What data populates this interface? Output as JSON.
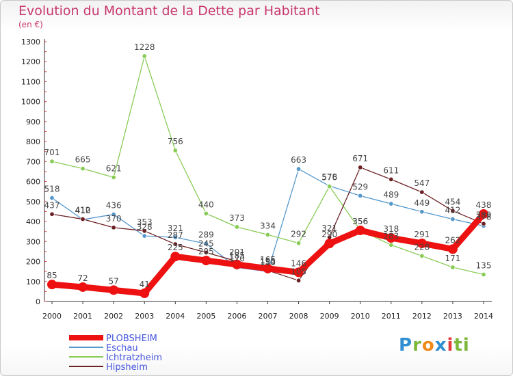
{
  "header": {
    "title": "Evolution du Montant de la Dette par Habitant",
    "subtitle": "(en €)"
  },
  "logo": {
    "letters": [
      "P",
      "r",
      "o",
      "x",
      "i",
      "ti"
    ]
  },
  "chart_data": {
    "type": "line",
    "title": "Evolution du Montant de la Dette par Habitant",
    "ylabel": "(en €)",
    "xlabel": "",
    "x": [
      "2000",
      "2001",
      "2002",
      "2003",
      "2004",
      "2005",
      "2006",
      "2007",
      "2008",
      "2009",
      "2010",
      "2011",
      "2012",
      "2013",
      "2014"
    ],
    "ylim": [
      0,
      1300
    ],
    "yticks": [
      0,
      100,
      200,
      300,
      400,
      500,
      600,
      700,
      800,
      900,
      1000,
      1100,
      1200,
      1300
    ],
    "grid": false,
    "legend_placement": "bottom-left",
    "series": [
      {
        "name": "PLOBSHEIM",
        "color": "#ee1111",
        "values": [
          85,
          72,
          57,
          41,
          225,
          205,
          185,
          165,
          146,
          290,
          356,
          318,
          291,
          262,
          438
        ]
      },
      {
        "name": "Eschau",
        "color": "#5598cc",
        "values": [
          518,
          410,
          436,
          328,
          321,
          289,
          170,
          150,
          663,
          578,
          529,
          489,
          449,
          412,
          378
        ]
      },
      {
        "name": "Ichtratzheim",
        "color": "#88cc55",
        "values": [
          701,
          665,
          621,
          1228,
          756,
          440,
          373,
          334,
          292,
          576,
          356,
          283,
          228,
          171,
          135
        ]
      },
      {
        "name": "Hipsheim",
        "color": "#6b2024",
        "values": [
          437,
          412,
          370,
          353,
          287,
          245,
          201,
          155,
          105,
          321,
          671,
          611,
          547,
          454,
          389
        ]
      }
    ]
  }
}
